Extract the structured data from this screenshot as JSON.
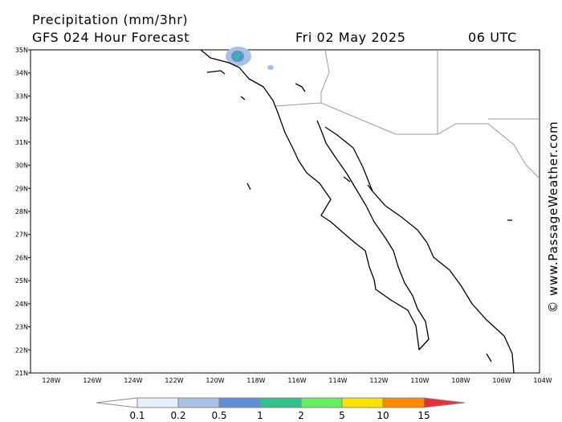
{
  "header": {
    "title": "Precipitation (mm/3hr)",
    "subtitle": "GFS 024 Hour Forecast",
    "date": "Fri 02 May 2025",
    "time": "06 UTC"
  },
  "latitude_labels": [
    "35N",
    "34N",
    "33N",
    "32N",
    "31N",
    "30N",
    "29N",
    "28N",
    "27N",
    "26N",
    "25N",
    "24N",
    "23N",
    "22N",
    "21N"
  ],
  "longitude_labels": [
    "128W",
    "126W",
    "124W",
    "122W",
    "120W",
    "118W",
    "116W",
    "114W",
    "112W",
    "110W",
    "108W",
    "106W",
    "104W"
  ],
  "colorbar": {
    "levels": [
      0.1,
      0.2,
      0.5,
      1,
      2,
      5,
      10,
      15
    ],
    "colors": [
      "#ffffff",
      "#e6eef9",
      "#a9c1e2",
      "#5c8fd6",
      "#2fc08c",
      "#66ee5e",
      "#ffe100",
      "#ff8a00",
      "#e8303a"
    ]
  },
  "watermark": "© www.PassageWeather.com"
}
